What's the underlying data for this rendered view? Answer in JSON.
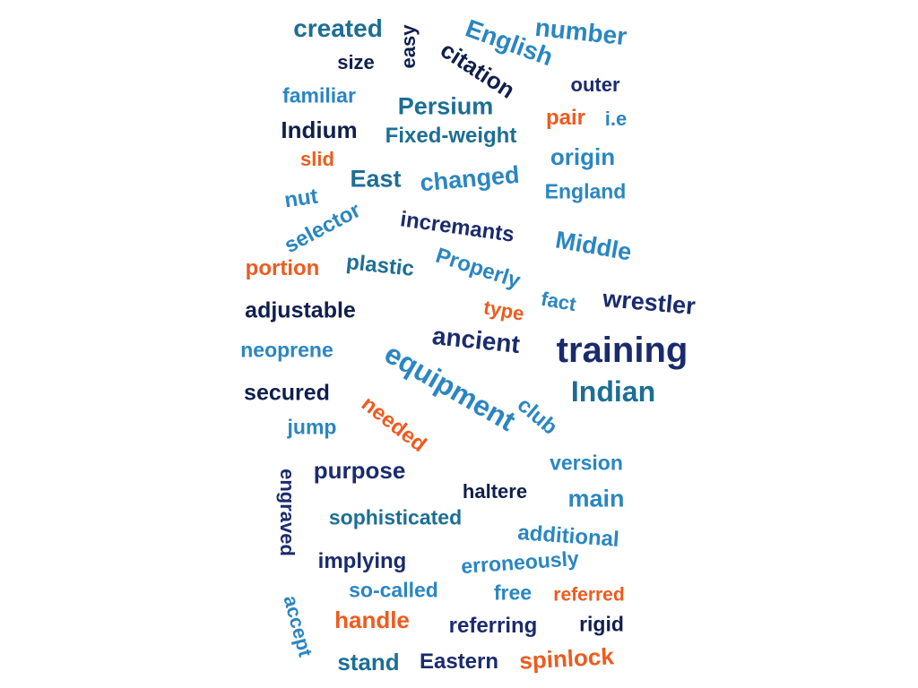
{
  "colors": {
    "navy": "#1a2b6d",
    "dark_navy": "#0f1f4d",
    "blue": "#1f6fad",
    "teal_blue": "#1c6e94",
    "light_blue": "#2a86c2",
    "orange": "#ee5b1e"
  },
  "words": [
    {
      "text": "created",
      "color": "teal_blue",
      "weight": 28,
      "angle": 0
    },
    {
      "text": "easy",
      "color": "dark_navy",
      "weight": 22,
      "angle": -90
    },
    {
      "text": "English",
      "color": "light_blue",
      "weight": 28,
      "angle": 20
    },
    {
      "text": "number",
      "color": "light_blue",
      "weight": 28,
      "angle": 6
    },
    {
      "text": "size",
      "color": "dark_navy",
      "weight": 22,
      "angle": 0
    },
    {
      "text": "citation",
      "color": "dark_navy",
      "weight": 26,
      "angle": 33
    },
    {
      "text": "outer",
      "color": "navy",
      "weight": 22,
      "angle": 0
    },
    {
      "text": "familiar",
      "color": "light_blue",
      "weight": 23,
      "angle": 0
    },
    {
      "text": "Persium",
      "color": "teal_blue",
      "weight": 27,
      "angle": 0
    },
    {
      "text": "pair",
      "color": "orange",
      "weight": 24,
      "angle": 0
    },
    {
      "text": "i.e",
      "color": "light_blue",
      "weight": 22,
      "angle": 0
    },
    {
      "text": "Indium",
      "color": "dark_navy",
      "weight": 26,
      "angle": 0
    },
    {
      "text": "Fixed-weight",
      "color": "teal_blue",
      "weight": 24,
      "angle": 0
    },
    {
      "text": "slid",
      "color": "orange",
      "weight": 22,
      "angle": 0
    },
    {
      "text": "origin",
      "color": "light_blue",
      "weight": 26,
      "angle": 0
    },
    {
      "text": "East",
      "color": "teal_blue",
      "weight": 27,
      "angle": 0
    },
    {
      "text": "changed",
      "color": "light_blue",
      "weight": 27,
      "angle": -5
    },
    {
      "text": "England",
      "color": "light_blue",
      "weight": 23,
      "angle": 0
    },
    {
      "text": "nut",
      "color": "light_blue",
      "weight": 24,
      "angle": -8
    },
    {
      "text": "selector",
      "color": "light_blue",
      "weight": 24,
      "angle": -28
    },
    {
      "text": "incremants",
      "color": "navy",
      "weight": 24,
      "angle": 8
    },
    {
      "text": "Middle",
      "color": "light_blue",
      "weight": 27,
      "angle": 10
    },
    {
      "text": "portion",
      "color": "orange",
      "weight": 24,
      "angle": 0
    },
    {
      "text": "plastic",
      "color": "teal_blue",
      "weight": 24,
      "angle": 6
    },
    {
      "text": "Properly",
      "color": "light_blue",
      "weight": 24,
      "angle": 18
    },
    {
      "text": "fact",
      "color": "light_blue",
      "weight": 22,
      "angle": 10
    },
    {
      "text": "wrestler",
      "color": "navy",
      "weight": 27,
      "angle": 5
    },
    {
      "text": "adjustable",
      "color": "dark_navy",
      "weight": 25,
      "angle": 0
    },
    {
      "text": "type",
      "color": "orange",
      "weight": 22,
      "angle": 10
    },
    {
      "text": "ancient",
      "color": "navy",
      "weight": 28,
      "angle": 6
    },
    {
      "text": "training",
      "color": "navy",
      "weight": 40,
      "angle": 0
    },
    {
      "text": "neoprene",
      "color": "light_blue",
      "weight": 23,
      "angle": 0
    },
    {
      "text": "equipment",
      "color": "light_blue",
      "weight": 32,
      "angle": 30
    },
    {
      "text": "Indian",
      "color": "teal_blue",
      "weight": 32,
      "angle": 0
    },
    {
      "text": "secured",
      "color": "dark_navy",
      "weight": 25,
      "angle": 0
    },
    {
      "text": "needed",
      "color": "orange",
      "weight": 24,
      "angle": 38
    },
    {
      "text": "club",
      "color": "light_blue",
      "weight": 24,
      "angle": 40
    },
    {
      "text": "jump",
      "color": "light_blue",
      "weight": 23,
      "angle": 0
    },
    {
      "text": "engraved",
      "color": "navy",
      "weight": 22,
      "angle": 90
    },
    {
      "text": "purpose",
      "color": "navy",
      "weight": 26,
      "angle": 0
    },
    {
      "text": "version",
      "color": "light_blue",
      "weight": 23,
      "angle": 0
    },
    {
      "text": "haltere",
      "color": "dark_navy",
      "weight": 22,
      "angle": 0
    },
    {
      "text": "main",
      "color": "light_blue",
      "weight": 27,
      "angle": 0
    },
    {
      "text": "sophisticated",
      "color": "teal_blue",
      "weight": 23,
      "angle": 0
    },
    {
      "text": "additional",
      "color": "light_blue",
      "weight": 24,
      "angle": 4
    },
    {
      "text": "implying",
      "color": "navy",
      "weight": 24,
      "angle": 0
    },
    {
      "text": "erroneously",
      "color": "light_blue",
      "weight": 23,
      "angle": -4
    },
    {
      "text": "accept",
      "color": "light_blue",
      "weight": 22,
      "angle": 75
    },
    {
      "text": "so-called",
      "color": "light_blue",
      "weight": 23,
      "angle": 0
    },
    {
      "text": "free",
      "color": "light_blue",
      "weight": 23,
      "angle": 0
    },
    {
      "text": "referred",
      "color": "orange",
      "weight": 21,
      "angle": 0
    },
    {
      "text": "handle",
      "color": "orange",
      "weight": 26,
      "angle": 0
    },
    {
      "text": "referring",
      "color": "navy",
      "weight": 24,
      "angle": 0
    },
    {
      "text": "rigid",
      "color": "dark_navy",
      "weight": 23,
      "angle": 0
    },
    {
      "text": "stand",
      "color": "teal_blue",
      "weight": 26,
      "angle": 0
    },
    {
      "text": "Eastern",
      "color": "navy",
      "weight": 24,
      "angle": 0
    },
    {
      "text": "spinlock",
      "color": "orange",
      "weight": 26,
      "angle": -3
    }
  ]
}
